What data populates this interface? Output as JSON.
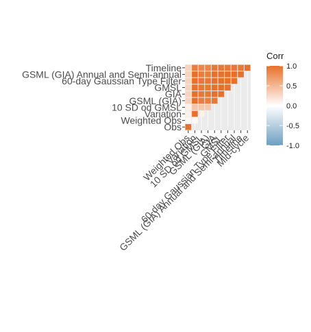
{
  "chart_data": {
    "type": "heatmap",
    "title": "",
    "xlabel": "",
    "ylabel": "",
    "y_labels": [
      "Obs",
      "Weighted Obs",
      "Variation",
      "10 SD od GMSL",
      "GSML (GIA)",
      "GIA",
      "GMSL",
      "60-day Gaussian Type Filter",
      "GSML (GIA) Annual and Semi-annual",
      "Timeline"
    ],
    "x_labels": [
      "Weighted Obs",
      "Variation",
      "10 SD od GMSL",
      "GSML (GIA)",
      "GIA",
      "GMSL",
      "60-day Gaussian Type Filter",
      "GSML (GIA) Annual and Semi-annual",
      "Timeline",
      "Mid-cycle"
    ],
    "matrix": [
      [
        1.0,
        null,
        null,
        null,
        null,
        null,
        null,
        null,
        null,
        null
      ],
      [
        0.05,
        0.05,
        null,
        null,
        null,
        null,
        null,
        null,
        null,
        null
      ],
      [
        0.1,
        1.0,
        0.1,
        null,
        null,
        null,
        null,
        null,
        null,
        null
      ],
      [
        0.1,
        0.4,
        0.4,
        0.4,
        null,
        null,
        null,
        null,
        null,
        null
      ],
      [
        0.3,
        1.0,
        0.9,
        0.9,
        0.95,
        null,
        null,
        null,
        null,
        null
      ],
      [
        0.3,
        1.0,
        0.95,
        0.95,
        1.0,
        1.0,
        null,
        null,
        null,
        null
      ],
      [
        0.3,
        1.0,
        0.95,
        0.95,
        1.0,
        1.0,
        1.0,
        null,
        null,
        null
      ],
      [
        0.3,
        1.0,
        0.95,
        0.95,
        1.0,
        1.0,
        1.0,
        1.0,
        null,
        null
      ],
      [
        0.3,
        1.0,
        0.9,
        0.9,
        1.0,
        1.0,
        1.0,
        1.0,
        1.0,
        null
      ],
      [
        0.3,
        0.9,
        0.85,
        0.85,
        0.95,
        0.95,
        0.95,
        0.95,
        0.95,
        1.0
      ]
    ],
    "legend": {
      "title": "Corr",
      "ticks": [
        "1.0",
        "0.5",
        "0.0",
        "-0.5",
        "-1.0"
      ],
      "tick_values": [
        1.0,
        0.5,
        0.0,
        -0.5,
        -1.0
      ],
      "placement": "right"
    },
    "colors": {
      "high": "#e8702a",
      "mid": "#ffffff",
      "low": "#6d9ec1",
      "grid_bg": "#ebebeb"
    }
  }
}
